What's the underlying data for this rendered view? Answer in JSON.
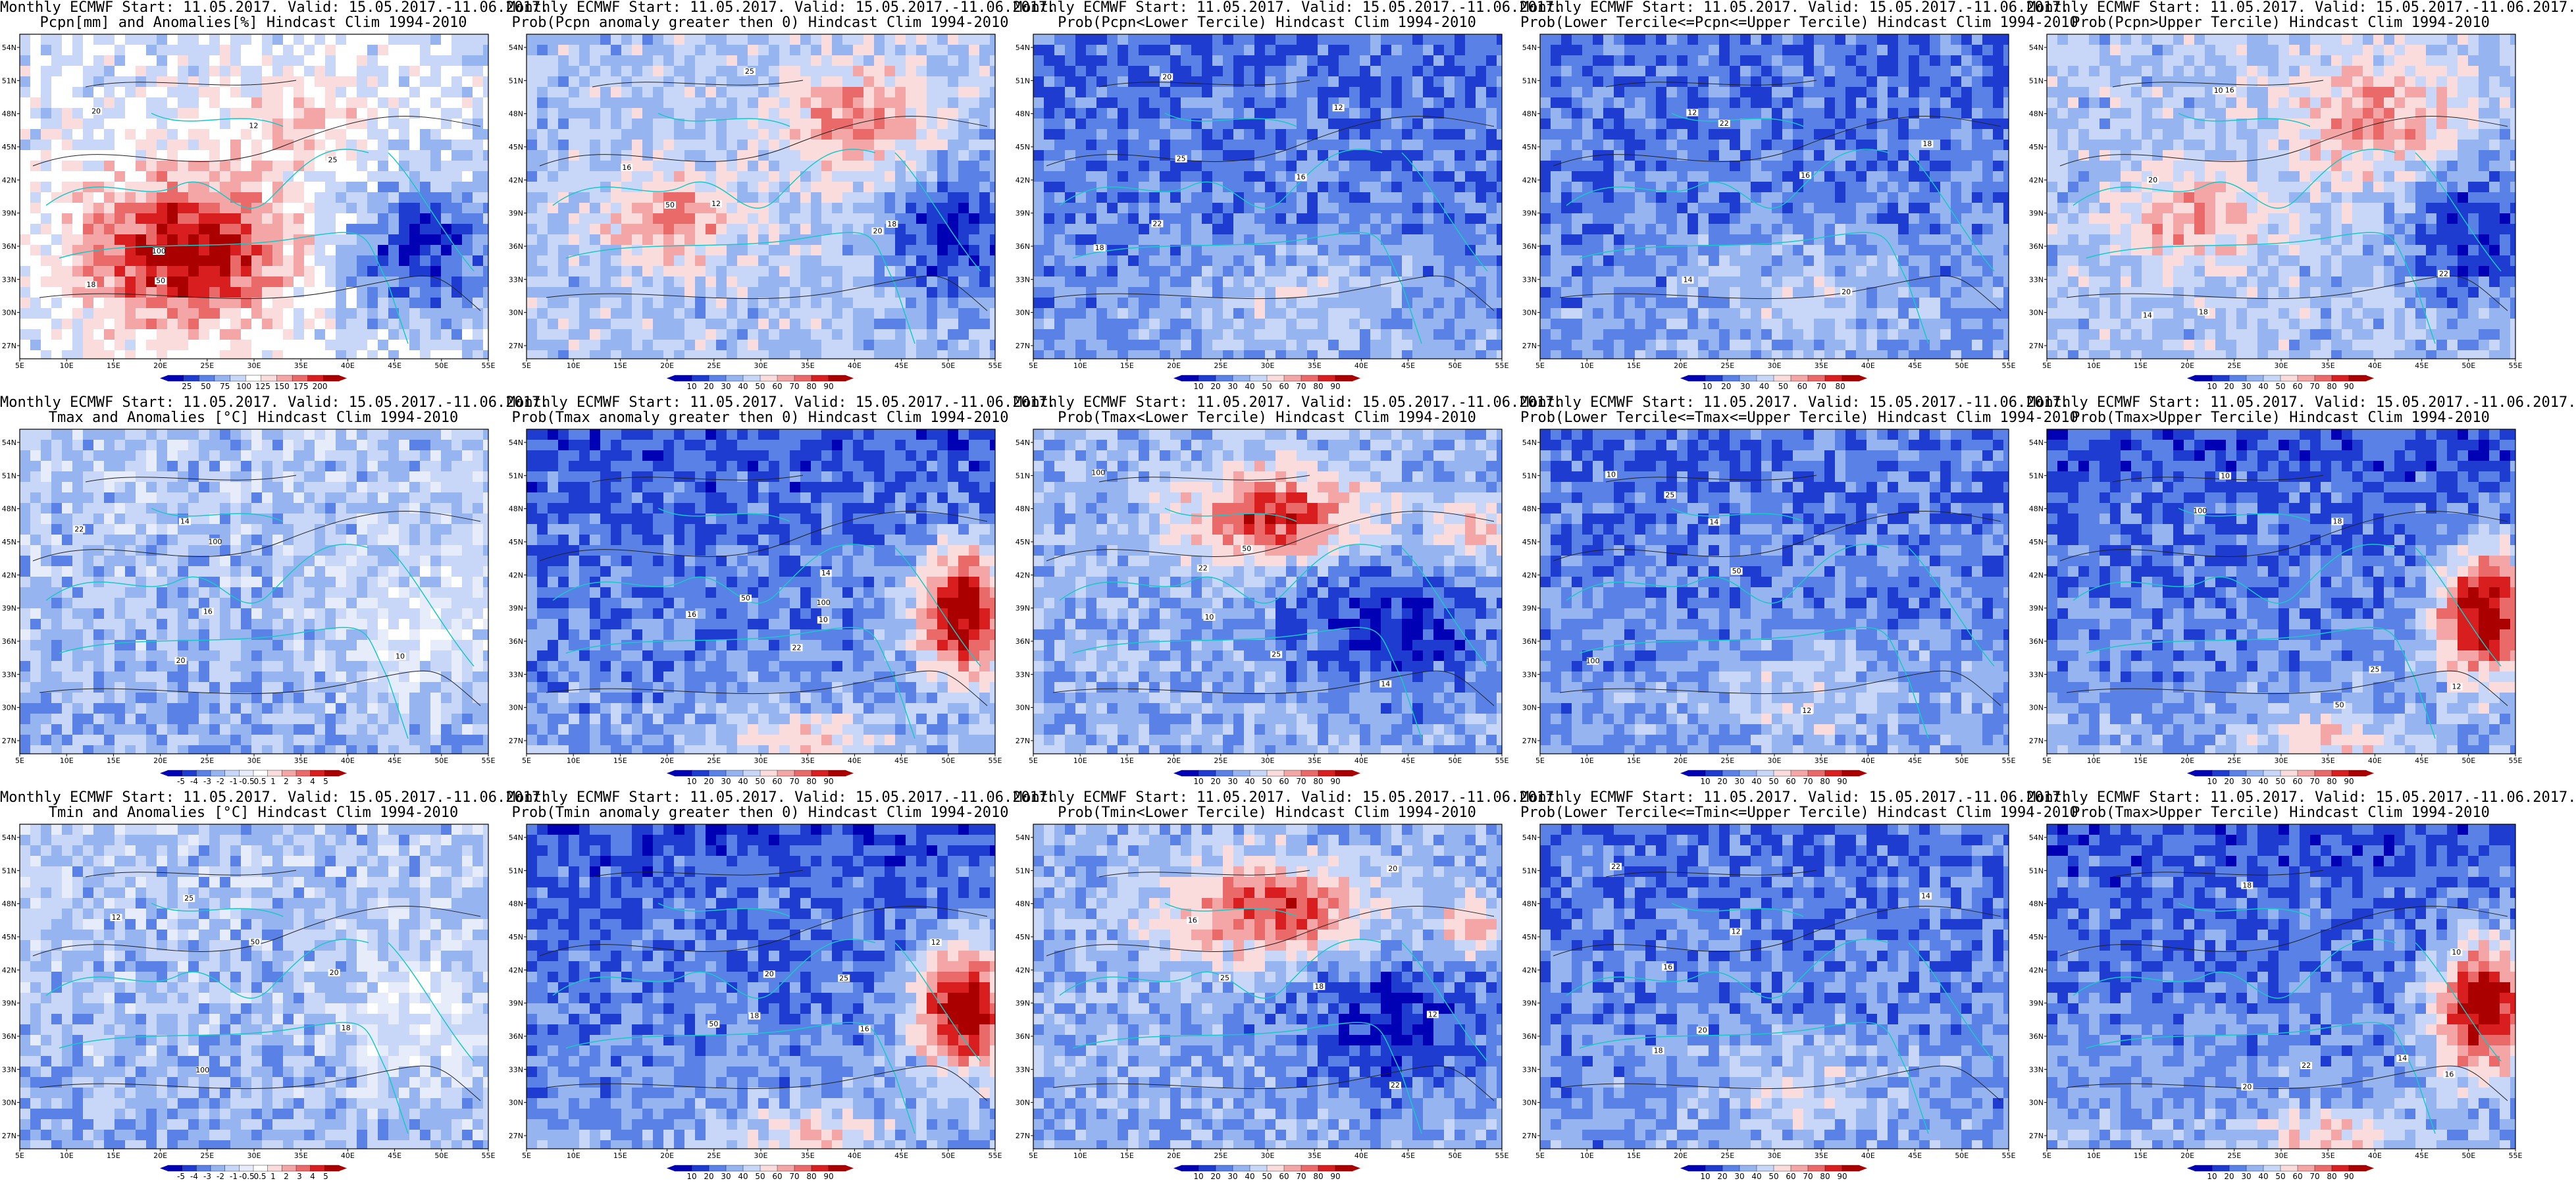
{
  "figure": {
    "lon_labels": [
      "5E",
      "10E",
      "15E",
      "20E",
      "25E",
      "30E",
      "35E",
      "40E",
      "45E",
      "50E",
      "55E"
    ],
    "lat_labels": [
      "27N",
      "30N",
      "33N",
      "36N",
      "39N",
      "42N",
      "45N",
      "48N",
      "51N",
      "54N"
    ],
    "contour_labels": [
      "100",
      "50",
      "25",
      "12",
      "18",
      "20",
      "16",
      "22",
      "14",
      "10"
    ],
    "palettes": {
      "precip_anom": [
        "#0000b4",
        "#1e3ccf",
        "#5a82e6",
        "#96b4f0",
        "#c8d7f8",
        "#ffffff",
        "#fadcdc",
        "#f4a6a6",
        "#ea6a6a",
        "#d81e1e",
        "#aa0000"
      ],
      "prob": [
        "#0000b4",
        "#1e3ccf",
        "#5a82e6",
        "#96b4f0",
        "#c8d7f8",
        "#fadcdc",
        "#f4a6a6",
        "#ea6a6a",
        "#d81e1e",
        "#aa0000"
      ],
      "temp_anom": [
        "#0000b4",
        "#1e3ccf",
        "#5a82e6",
        "#96b4f0",
        "#c8d7f8",
        "#e6ecfa",
        "#ffffff",
        "#fadcdc",
        "#f4a6a6",
        "#ea6a6a",
        "#d81e1e",
        "#aa0000"
      ]
    },
    "panels": [
      {
        "title1": "Monthly ECMWF Start: 11.05.2017. Valid: 15.05.2017.-11.06.2017.",
        "title2": "Pcpn[mm] and Anomalies[%] Hindcast Clim 1994-2010",
        "cbar": "precip_anom",
        "cbar_labels": [
          "25",
          "50",
          "75",
          "100",
          "125",
          "150",
          "175",
          "200"
        ],
        "bias": "red-south"
      },
      {
        "title1": "Monthly ECMWF Start: 11.05.2017. Valid: 15.05.2017.-11.06.2017.",
        "title2": "Prob(Pcpn anomaly greater then 0) Hindcast Clim 1994-2010",
        "cbar": "prob",
        "cbar_labels": [
          "10",
          "20",
          "30",
          "40",
          "50",
          "60",
          "70",
          "80",
          "90"
        ],
        "bias": "mixed-red"
      },
      {
        "title1": "Monthly ECMWF Start: 11.05.2017. Valid: 15.05.2017.-11.06.2017.",
        "title2": "Prob(Pcpn<Lower Tercile) Hindcast Clim 1994-2010",
        "cbar": "prob",
        "cbar_labels": [
          "10",
          "20",
          "30",
          "40",
          "50",
          "60",
          "70",
          "80",
          "90"
        ],
        "bias": "blue"
      },
      {
        "title1": "Monthly ECMWF Start: 11.05.2017. Valid: 15.05.2017.-11.06.2017.",
        "title2": "Prob(Lower Tercile<=Pcpn<=Upper Tercile) Hindcast Clim 1994-2010",
        "cbar": "prob",
        "cbar_labels": [
          "10",
          "20",
          "30",
          "40",
          "50",
          "60",
          "70",
          "80"
        ],
        "bias": "blue"
      },
      {
        "title1": "Monthly ECMWF Start: 11.05.2017. Valid: 15.05.2017.-11.06.2017.",
        "title2": "Prob(Pcpn>Upper Tercile) Hindcast Clim 1994-2010",
        "cbar": "prob",
        "cbar_labels": [
          "10",
          "20",
          "30",
          "40",
          "50",
          "60",
          "70",
          "80",
          "90"
        ],
        "bias": "mixed-red"
      },
      {
        "title1": "Monthly ECMWF Start: 11.05.2017. Valid: 15.05.2017.-11.06.2017.",
        "title2": "Tmax and Anomalies [°C] Hindcast Clim 1994-2010",
        "cbar": "temp_anom",
        "cbar_labels": [
          "-5",
          "-4",
          "-3",
          "-2",
          "-1",
          "-0.5",
          "0.5",
          "1",
          "2",
          "3",
          "4",
          "5"
        ],
        "bias": "light-blue"
      },
      {
        "title1": "Monthly ECMWF Start: 11.05.2017. Valid: 15.05.2017.-11.06.2017.",
        "title2": "Prob(Tmax anomaly greater then 0) Hindcast Clim 1994-2010",
        "cbar": "prob",
        "cbar_labels": [
          "10",
          "20",
          "30",
          "40",
          "50",
          "60",
          "70",
          "80",
          "90"
        ],
        "bias": "blue-southeast-red"
      },
      {
        "title1": "Monthly ECMWF Start: 11.05.2017. Valid: 15.05.2017.-11.06.2017.",
        "title2": "Prob(Tmax<Lower Tercile) Hindcast Clim 1994-2010",
        "cbar": "prob",
        "cbar_labels": [
          "10",
          "20",
          "30",
          "40",
          "50",
          "60",
          "70",
          "80",
          "90"
        ],
        "bias": "red-north"
      },
      {
        "title1": "Monthly ECMWF Start: 11.05.2017. Valid: 15.05.2017.-11.06.2017.",
        "title2": "Prob(Lower Tercile<=Tmax<=Upper Tercile) Hindcast Clim 1994-2010",
        "cbar": "prob",
        "cbar_labels": [
          "10",
          "20",
          "30",
          "40",
          "50",
          "60",
          "70",
          "80",
          "90"
        ],
        "bias": "blue"
      },
      {
        "title1": "Monthly ECMWF Start: 11.05.2017. Valid: 15.05.2017.-11.06.2017.",
        "title2": "Prob(Tmax>Upper Tercile) Hindcast Clim 1994-2010",
        "cbar": "prob",
        "cbar_labels": [
          "10",
          "20",
          "30",
          "40",
          "50",
          "60",
          "70",
          "80",
          "90"
        ],
        "bias": "blue-southeast-red"
      },
      {
        "title1": "Monthly ECMWF Start: 11.05.2017. Valid: 15.05.2017.-11.06.2017.",
        "title2": "Tmin and Anomalies [°C] Hindcast Clim 1994-2010",
        "cbar": "temp_anom",
        "cbar_labels": [
          "-5",
          "-4",
          "-3",
          "-2",
          "-1",
          "-0.5",
          "0.5",
          "1",
          "2",
          "3",
          "4",
          "5"
        ],
        "bias": "light-blue"
      },
      {
        "title1": "Monthly ECMWF Start: 11.05.2017. Valid: 15.05.2017.-11.06.2017.",
        "title2": "Prob(Tmin anomaly greater then 0) Hindcast Clim 1994-2010",
        "cbar": "prob",
        "cbar_labels": [
          "10",
          "20",
          "30",
          "40",
          "50",
          "60",
          "70",
          "80",
          "90"
        ],
        "bias": "blue-southeast-red"
      },
      {
        "title1": "Monthly ECMWF Start: 11.05.2017. Valid: 15.05.2017.-11.06.2017.",
        "title2": "Prob(Tmin<Lower Tercile) Hindcast Clim 1994-2010",
        "cbar": "prob",
        "cbar_labels": [
          "10",
          "20",
          "30",
          "40",
          "50",
          "60",
          "70",
          "80",
          "90"
        ],
        "bias": "red-north"
      },
      {
        "title1": "Monthly ECMWF Start: 11.05.2017. Valid: 15.05.2017.-11.06.2017.",
        "title2": "Prob(Lower Tercile<=Tmin<=Upper Tercile) Hindcast Clim 1994-2010",
        "cbar": "prob",
        "cbar_labels": [
          "10",
          "20",
          "30",
          "40",
          "50",
          "60",
          "70",
          "80",
          "90"
        ],
        "bias": "blue"
      },
      {
        "title1": "Monthly ECMWF Start: 11.05.2017. Valid: 15.05.2017.-11.06.2017.",
        "title2": "Prob(Tmax>Upper Tercile) Hindcast Clim 1994-2010",
        "cbar": "prob",
        "cbar_labels": [
          "10",
          "20",
          "30",
          "40",
          "50",
          "60",
          "70",
          "80",
          "90"
        ],
        "bias": "blue-southeast-red"
      }
    ]
  }
}
